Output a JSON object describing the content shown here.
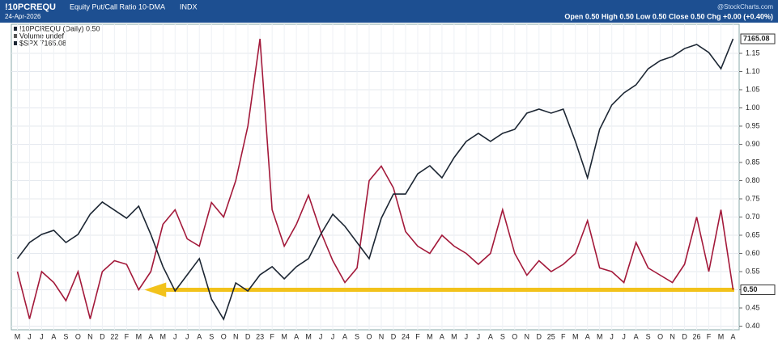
{
  "chart_data": {
    "type": "line",
    "symbol": "!10PCREQU",
    "title": "Equity Put/Call Ratio 10-DMA",
    "exchange": "INDX",
    "date": "24-Apr-2026",
    "source": "@StockCharts.com",
    "ohlc": "Open 0.50  High 0.50  Low 0.50  Close 0.50  Chg +0.00 (+0.40%)",
    "legend_labels": [
      "!10PCREQU (Daily) 0.50",
      "Volume undef",
      "$SPX 7165.08"
    ],
    "categories": [
      "M",
      "J",
      "J",
      "A",
      "S",
      "O",
      "N",
      "D",
      "22",
      "F",
      "M",
      "A",
      "M",
      "J",
      "J",
      "A",
      "S",
      "O",
      "N",
      "D",
      "23",
      "F",
      "M",
      "A",
      "M",
      "J",
      "J",
      "A",
      "S",
      "O",
      "N",
      "D",
      "24",
      "F",
      "M",
      "A",
      "M",
      "J",
      "J",
      "A",
      "S",
      "O",
      "N",
      "D",
      "25",
      "F",
      "M",
      "A",
      "M",
      "J",
      "J",
      "A",
      "S",
      "O",
      "N",
      "D",
      "26",
      "F",
      "M",
      "A"
    ],
    "series": [
      {
        "name": "!10PCREQU",
        "color": "#a3193a",
        "values": [
          0.55,
          0.42,
          0.55,
          0.52,
          0.47,
          0.55,
          0.42,
          0.55,
          0.58,
          0.57,
          0.5,
          0.55,
          0.68,
          0.72,
          0.64,
          0.62,
          0.74,
          0.7,
          0.8,
          0.95,
          1.19,
          0.72,
          0.62,
          0.68,
          0.76,
          0.66,
          0.58,
          0.52,
          0.56,
          0.8,
          0.84,
          0.78,
          0.66,
          0.62,
          0.6,
          0.65,
          0.62,
          0.6,
          0.57,
          0.6,
          0.72,
          0.6,
          0.54,
          0.58,
          0.55,
          0.57,
          0.6,
          0.69,
          0.56,
          0.55,
          0.52,
          0.63,
          0.56,
          0.54,
          0.52,
          0.57,
          0.7,
          0.55,
          0.72,
          0.5
        ],
        "value_labels": [
          null,
          null,
          null,
          null,
          null,
          null,
          null,
          null,
          null,
          null,
          null,
          null,
          null,
          null,
          null,
          null,
          null,
          null,
          null,
          null,
          null,
          null,
          null,
          null,
          null,
          null,
          null,
          null,
          null,
          null,
          null,
          null,
          null,
          null,
          null,
          null,
          null,
          null,
          null,
          null,
          null,
          null,
          null,
          null,
          null,
          null,
          null,
          null,
          null,
          null,
          null,
          null,
          null,
          null,
          null,
          null,
          null,
          null,
          null,
          "0.50"
        ]
      },
      {
        "name": "$SPX",
        "color": "#1c2633",
        "axis": "y2",
        "values": [
          4423,
          4624,
          4725,
          4776,
          4624,
          4725,
          4977,
          5129,
          5028,
          4927,
          5078,
          4725,
          4322,
          4019,
          4221,
          4423,
          3918,
          3666,
          4120,
          4019,
          4221,
          4322,
          4171,
          4322,
          4423,
          4725,
          4977,
          4826,
          4624,
          4423,
          4927,
          5229,
          5229,
          5481,
          5582,
          5431,
          5683,
          5885,
          5986,
          5885,
          5986,
          6036,
          6238,
          6288,
          6238,
          6288,
          5885,
          5431,
          6036,
          6339,
          6490,
          6591,
          6792,
          6893,
          6944,
          7044,
          7095,
          6994,
          6792,
          7165.08
        ]
      }
    ],
    "ylim": [
      0.39,
      1.23
    ],
    "yticks": [
      {
        "value": 0.4,
        "label": "0.40"
      },
      0.45,
      {
        "value": 0.5,
        "label": "0.50"
      },
      0.55,
      {
        "value": 0.6,
        "label": "0.60"
      },
      0.65,
      {
        "value": 0.7,
        "label": "0.70"
      },
      0.75,
      {
        "value": 0.8,
        "label": "0.80"
      },
      0.85,
      {
        "value": 0.9,
        "label": "0.90"
      },
      0.95,
      {
        "value": 1.0,
        "label": "1.00"
      },
      1.05,
      {
        "value": 1.1,
        "label": "1.10"
      },
      1.15
    ],
    "y2lim": [
      3535,
      7347
    ],
    "grid": true
  }
}
